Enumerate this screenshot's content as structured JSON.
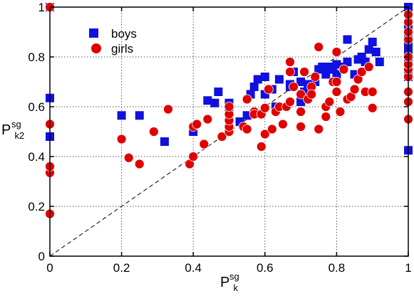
{
  "chart_data": {
    "type": "scatter",
    "xlabel": {
      "main": "P",
      "sup": "sg",
      "sub": "k"
    },
    "ylabel": {
      "main": "P",
      "sup": "sg",
      "sub": "k2"
    },
    "xlim": [
      0,
      1
    ],
    "ylim": [
      0,
      1
    ],
    "x_ticks": [
      0,
      0.2,
      0.4,
      0.6,
      0.8,
      1
    ],
    "y_ticks": [
      0,
      0.2,
      0.4,
      0.6,
      0.8,
      1
    ],
    "x_tick_labels": [
      "0",
      "0.2",
      "0.4",
      "0.6",
      "0.8",
      "1"
    ],
    "y_tick_labels": [
      "0",
      "0.2",
      "0.4",
      "0.6",
      "0.8",
      "1"
    ],
    "grid": true,
    "reference_line": {
      "style": "dashed",
      "from": [
        0,
        0
      ],
      "to": [
        1,
        1
      ]
    },
    "legend": {
      "placement": "top-left"
    },
    "series": [
      {
        "name": "boys",
        "marker": "square",
        "color": "#1010e0",
        "points": [
          [
            0,
            0.48
          ],
          [
            0,
            0.635
          ],
          [
            0,
            1
          ],
          [
            0.2,
            0.565
          ],
          [
            0.25,
            0.565
          ],
          [
            0.32,
            0.46
          ],
          [
            0.4,
            0.5
          ],
          [
            0.44,
            0.625
          ],
          [
            0.46,
            0.615
          ],
          [
            0.47,
            0.66
          ],
          [
            0.5,
            0.6
          ],
          [
            0.5,
            0.615
          ],
          [
            0.53,
            0.54
          ],
          [
            0.55,
            0.565
          ],
          [
            0.56,
            0.65
          ],
          [
            0.57,
            0.68
          ],
          [
            0.58,
            0.71
          ],
          [
            0.6,
            0.72
          ],
          [
            0.6,
            0.65
          ],
          [
            0.62,
            0.67
          ],
          [
            0.63,
            0.6
          ],
          [
            0.64,
            0.71
          ],
          [
            0.67,
            0.69
          ],
          [
            0.67,
            0.68
          ],
          [
            0.68,
            0.74
          ],
          [
            0.7,
            0.62
          ],
          [
            0.7,
            0.7
          ],
          [
            0.71,
            0.66
          ],
          [
            0.72,
            0.69
          ],
          [
            0.74,
            0.7
          ],
          [
            0.75,
            0.75
          ],
          [
            0.76,
            0.76
          ],
          [
            0.77,
            0.73
          ],
          [
            0.78,
            0.76
          ],
          [
            0.79,
            0.75
          ],
          [
            0.8,
            0.73
          ],
          [
            0.8,
            0.77
          ],
          [
            0.82,
            0.76
          ],
          [
            0.83,
            0.87
          ],
          [
            0.83,
            0.78
          ],
          [
            0.85,
            0.73
          ],
          [
            0.86,
            0.79
          ],
          [
            0.87,
            0.8
          ],
          [
            0.88,
            0.78
          ],
          [
            0.89,
            0.83
          ],
          [
            0.9,
            0.86
          ],
          [
            0.91,
            0.82
          ],
          [
            0.92,
            0.78
          ],
          [
            1,
            0.425
          ],
          [
            1,
            0.72
          ],
          [
            1,
            0.74
          ],
          [
            1,
            0.76
          ],
          [
            1,
            0.78
          ],
          [
            1,
            0.8
          ],
          [
            1,
            0.82
          ],
          [
            1,
            0.85
          ],
          [
            1,
            0.88
          ],
          [
            1,
            0.9
          ],
          [
            1,
            0.93
          ],
          [
            1,
            1
          ]
        ]
      },
      {
        "name": "girls",
        "marker": "circle",
        "color": "#e00000",
        "points": [
          [
            0,
            0.17
          ],
          [
            0,
            0.335
          ],
          [
            0,
            0.36
          ],
          [
            0,
            0.53
          ],
          [
            0,
            1
          ],
          [
            0.2,
            0.47
          ],
          [
            0.22,
            0.395
          ],
          [
            0.25,
            0.37
          ],
          [
            0.29,
            0.5
          ],
          [
            0.33,
            0.59
          ],
          [
            0.39,
            0.37
          ],
          [
            0.4,
            0.4
          ],
          [
            0.4,
            0.52
          ],
          [
            0.41,
            0.53
          ],
          [
            0.43,
            0.45
          ],
          [
            0.44,
            0.55
          ],
          [
            0.48,
            0.48
          ],
          [
            0.5,
            0.5
          ],
          [
            0.5,
            0.52
          ],
          [
            0.5,
            0.545
          ],
          [
            0.5,
            0.57
          ],
          [
            0.5,
            0.6
          ],
          [
            0.54,
            0.52
          ],
          [
            0.55,
            0.51
          ],
          [
            0.55,
            0.63
          ],
          [
            0.57,
            0.58
          ],
          [
            0.57,
            0.57
          ],
          [
            0.59,
            0.57
          ],
          [
            0.59,
            0.44
          ],
          [
            0.6,
            0.49
          ],
          [
            0.6,
            0.595
          ],
          [
            0.61,
            0.67
          ],
          [
            0.62,
            0.51
          ],
          [
            0.63,
            0.58
          ],
          [
            0.64,
            0.6
          ],
          [
            0.65,
            0.53
          ],
          [
            0.66,
            0.6
          ],
          [
            0.67,
            0.62
          ],
          [
            0.67,
            0.78
          ],
          [
            0.67,
            0.74
          ],
          [
            0.68,
            0.68
          ],
          [
            0.7,
            0.65
          ],
          [
            0.7,
            0.58
          ],
          [
            0.7,
            0.52
          ],
          [
            0.71,
            0.74
          ],
          [
            0.72,
            0.63
          ],
          [
            0.73,
            0.68
          ],
          [
            0.73,
            0.65
          ],
          [
            0.74,
            0.72
          ],
          [
            0.75,
            0.51
          ],
          [
            0.75,
            0.84
          ],
          [
            0.77,
            0.56
          ],
          [
            0.77,
            0.6
          ],
          [
            0.78,
            0.62
          ],
          [
            0.79,
            0.7
          ],
          [
            0.8,
            0.66
          ],
          [
            0.8,
            0.7
          ],
          [
            0.81,
            0.58
          ],
          [
            0.82,
            0.75
          ],
          [
            0.83,
            0.63
          ],
          [
            0.84,
            0.64
          ],
          [
            0.85,
            0.67
          ],
          [
            0.86,
            0.71
          ],
          [
            0.87,
            0.74
          ],
          [
            0.88,
            0.66
          ],
          [
            0.89,
            0.76
          ],
          [
            0.9,
            0.66
          ],
          [
            0.9,
            0.595
          ],
          [
            0.8,
            0.82
          ],
          [
            1,
            0.55
          ],
          [
            1,
            0.62
          ],
          [
            1,
            0.66
          ],
          [
            1,
            0.72
          ],
          [
            1,
            0.75
          ],
          [
            1,
            0.77
          ],
          [
            1,
            0.8
          ],
          [
            1,
            0.87
          ],
          [
            1,
            0.9
          ],
          [
            1,
            0.94
          ],
          [
            1,
            0.97
          ]
        ]
      }
    ]
  }
}
